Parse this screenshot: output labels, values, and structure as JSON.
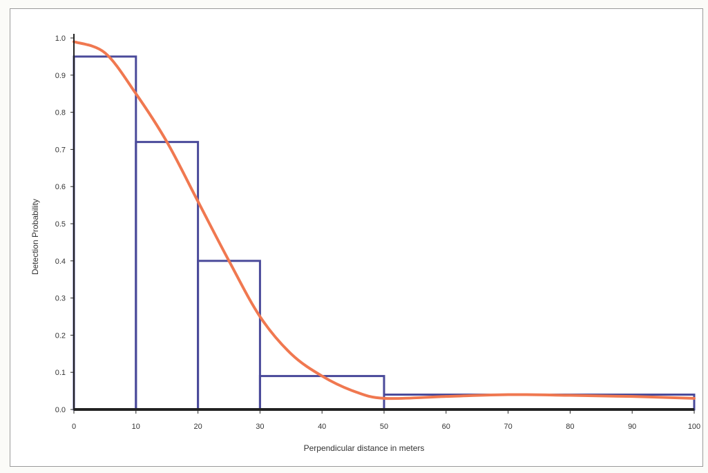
{
  "chart_data": {
    "type": "bar",
    "title": "",
    "xlabel": "Perpendicular distance in meters",
    "ylabel": "Detection Probability",
    "xlim": [
      0,
      100
    ],
    "ylim": [
      0,
      1.0
    ],
    "x_ticks": [
      0,
      10,
      20,
      30,
      40,
      50,
      60,
      70,
      80,
      90,
      100
    ],
    "x_tick_labels": [
      "0",
      "10",
      "20",
      "30",
      "40",
      "50",
      "60",
      "70",
      "80",
      "90",
      "100"
    ],
    "y_ticks": [
      0,
      0.1,
      0.2,
      0.3,
      0.4,
      0.5,
      0.6,
      0.7,
      0.8,
      0.9,
      1.0
    ],
    "y_tick_labels": [
      "0.0",
      "0.1",
      "0.2",
      "0.3",
      "0.4",
      "0.5",
      "0.6",
      "0.7",
      "0.8",
      "0.9",
      "1.0"
    ],
    "grid": false,
    "histogram": {
      "bins": [
        {
          "from": 0,
          "to": 10,
          "value": 0.95
        },
        {
          "from": 10,
          "to": 20,
          "value": 0.72
        },
        {
          "from": 20,
          "to": 30,
          "value": 0.4
        },
        {
          "from": 30,
          "to": 50,
          "value": 0.09
        },
        {
          "from": 50,
          "to": 100,
          "value": 0.04
        }
      ]
    },
    "fitted_curve": {
      "x": [
        0,
        5,
        10,
        15,
        20,
        25,
        30,
        35,
        40,
        45,
        50,
        60,
        70,
        80,
        90,
        100
      ],
      "y": [
        0.99,
        0.96,
        0.85,
        0.72,
        0.56,
        0.4,
        0.25,
        0.15,
        0.09,
        0.05,
        0.03,
        0.035,
        0.04,
        0.038,
        0.035,
        0.03
      ]
    },
    "colors": {
      "bars": "#4a4a9a",
      "curve": "#f07850",
      "axis": "#222222"
    }
  }
}
